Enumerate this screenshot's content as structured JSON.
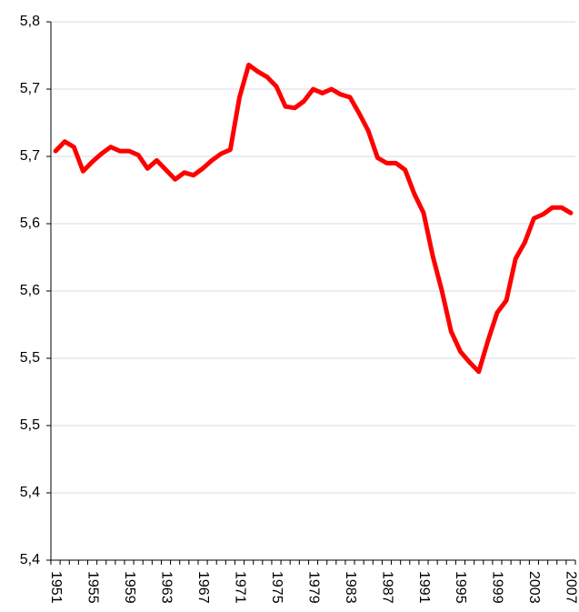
{
  "chart_data": {
    "type": "line",
    "categories": [
      "1951",
      null,
      null,
      null,
      "1955",
      null,
      null,
      null,
      "1959",
      null,
      null,
      null,
      "1963",
      null,
      null,
      null,
      "1967",
      null,
      null,
      null,
      "1971",
      null,
      null,
      null,
      "1975",
      null,
      null,
      null,
      "1979",
      null,
      null,
      null,
      "1983",
      null,
      null,
      null,
      "1987",
      null,
      null,
      null,
      "1991",
      null,
      null,
      null,
      "1995",
      null,
      null,
      null,
      "1999",
      null,
      null,
      null,
      "2003",
      null,
      null,
      null,
      "2007"
    ],
    "series": [
      {
        "color": "#ff0000",
        "values": [
          5.704,
          5.711,
          5.707,
          5.689,
          5.696,
          5.702,
          5.707,
          5.704,
          5.704,
          5.701,
          5.691,
          5.697,
          5.69,
          5.683,
          5.688,
          5.686,
          5.691,
          5.697,
          5.702,
          5.705,
          5.744,
          5.768,
          5.763,
          5.759,
          5.752,
          5.737,
          5.736,
          5.741,
          5.75,
          5.747,
          5.75,
          5.746,
          5.744,
          5.732,
          5.719,
          5.699,
          5.695,
          5.695,
          5.69,
          5.672,
          5.658,
          5.626,
          5.6,
          5.57,
          5.555,
          5.547,
          5.54,
          5.563,
          5.584,
          5.593,
          5.624,
          5.636,
          5.654,
          5.657,
          5.662,
          5.662,
          5.658
        ]
      }
    ],
    "ylim": [
      5.4,
      5.8
    ],
    "yticks": [
      {
        "value": 5.4,
        "label": "5,4"
      },
      {
        "value": 5.45,
        "label": "5,4"
      },
      {
        "value": 5.5,
        "label": "5,5"
      },
      {
        "value": 5.55,
        "label": "5,5"
      },
      {
        "value": 5.6,
        "label": "5,6"
      },
      {
        "value": 5.65,
        "label": "5,6"
      },
      {
        "value": 5.7,
        "label": "5,7"
      },
      {
        "value": 5.75,
        "label": "5,7"
      },
      {
        "value": 5.8,
        "label": "5,8"
      }
    ],
    "grid": true
  }
}
